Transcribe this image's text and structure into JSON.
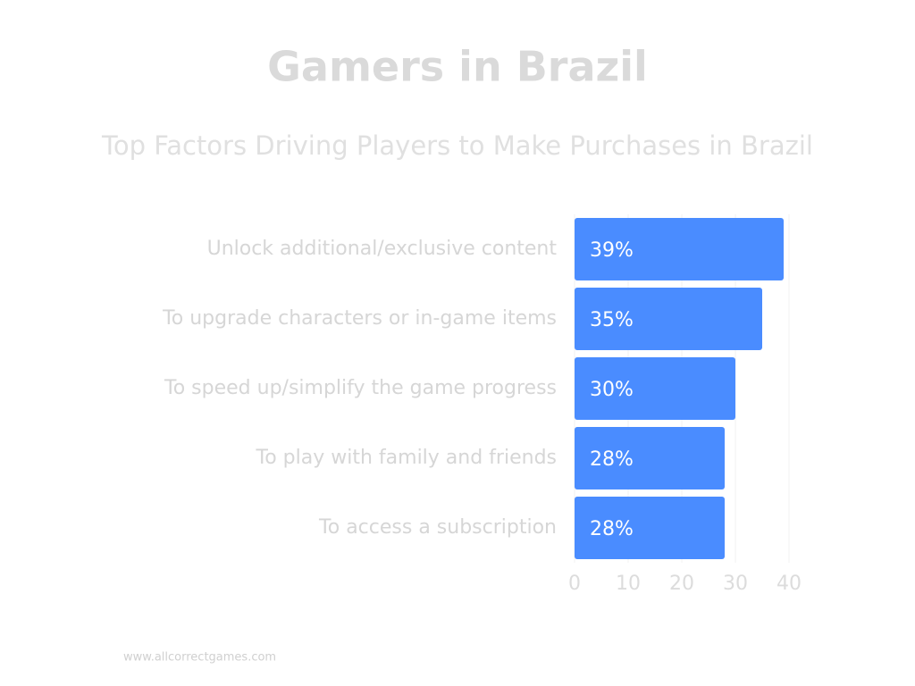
{
  "chart_data": {
    "type": "bar",
    "orientation": "horizontal",
    "title": "Gamers in Brazil",
    "subtitle": "Top Factors Driving Players to Make Purchases in Brazil",
    "categories": [
      "Unlock additional/exclusive content",
      "To upgrade characters or in-game items",
      "To speed up/simplify the game progress",
      "To play with family and friends",
      "To access a subscription"
    ],
    "values": [
      39,
      35,
      30,
      28,
      28
    ],
    "value_labels": [
      "39%",
      "35%",
      "30%",
      "28%",
      "28%"
    ],
    "color": "#4a8cff",
    "xlim": [
      0,
      40
    ],
    "xticks": [
      0,
      10,
      20,
      30,
      40
    ],
    "grid": true,
    "footer": "www.allcorrectgames.com"
  }
}
